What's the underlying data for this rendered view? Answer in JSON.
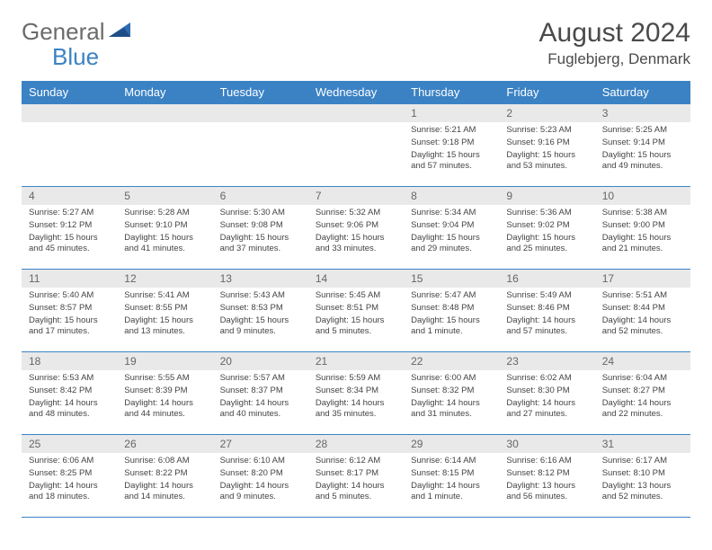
{
  "logo": {
    "text1": "General",
    "text2": "Blue"
  },
  "title": {
    "month": "August 2024",
    "location": "Fuglebjerg, Denmark"
  },
  "colors": {
    "header_bg": "#3b82c4",
    "header_text": "#ffffff",
    "daynum_bg": "#e9e9e9",
    "border": "#3b82c4"
  },
  "weekdays": [
    "Sunday",
    "Monday",
    "Tuesday",
    "Wednesday",
    "Thursday",
    "Friday",
    "Saturday"
  ],
  "weeks": [
    [
      null,
      null,
      null,
      null,
      {
        "n": "1",
        "sr": "Sunrise: 5:21 AM",
        "ss": "Sunset: 9:18 PM",
        "dl": "Daylight: 15 hours and 57 minutes."
      },
      {
        "n": "2",
        "sr": "Sunrise: 5:23 AM",
        "ss": "Sunset: 9:16 PM",
        "dl": "Daylight: 15 hours and 53 minutes."
      },
      {
        "n": "3",
        "sr": "Sunrise: 5:25 AM",
        "ss": "Sunset: 9:14 PM",
        "dl": "Daylight: 15 hours and 49 minutes."
      }
    ],
    [
      {
        "n": "4",
        "sr": "Sunrise: 5:27 AM",
        "ss": "Sunset: 9:12 PM",
        "dl": "Daylight: 15 hours and 45 minutes."
      },
      {
        "n": "5",
        "sr": "Sunrise: 5:28 AM",
        "ss": "Sunset: 9:10 PM",
        "dl": "Daylight: 15 hours and 41 minutes."
      },
      {
        "n": "6",
        "sr": "Sunrise: 5:30 AM",
        "ss": "Sunset: 9:08 PM",
        "dl": "Daylight: 15 hours and 37 minutes."
      },
      {
        "n": "7",
        "sr": "Sunrise: 5:32 AM",
        "ss": "Sunset: 9:06 PM",
        "dl": "Daylight: 15 hours and 33 minutes."
      },
      {
        "n": "8",
        "sr": "Sunrise: 5:34 AM",
        "ss": "Sunset: 9:04 PM",
        "dl": "Daylight: 15 hours and 29 minutes."
      },
      {
        "n": "9",
        "sr": "Sunrise: 5:36 AM",
        "ss": "Sunset: 9:02 PM",
        "dl": "Daylight: 15 hours and 25 minutes."
      },
      {
        "n": "10",
        "sr": "Sunrise: 5:38 AM",
        "ss": "Sunset: 9:00 PM",
        "dl": "Daylight: 15 hours and 21 minutes."
      }
    ],
    [
      {
        "n": "11",
        "sr": "Sunrise: 5:40 AM",
        "ss": "Sunset: 8:57 PM",
        "dl": "Daylight: 15 hours and 17 minutes."
      },
      {
        "n": "12",
        "sr": "Sunrise: 5:41 AM",
        "ss": "Sunset: 8:55 PM",
        "dl": "Daylight: 15 hours and 13 minutes."
      },
      {
        "n": "13",
        "sr": "Sunrise: 5:43 AM",
        "ss": "Sunset: 8:53 PM",
        "dl": "Daylight: 15 hours and 9 minutes."
      },
      {
        "n": "14",
        "sr": "Sunrise: 5:45 AM",
        "ss": "Sunset: 8:51 PM",
        "dl": "Daylight: 15 hours and 5 minutes."
      },
      {
        "n": "15",
        "sr": "Sunrise: 5:47 AM",
        "ss": "Sunset: 8:48 PM",
        "dl": "Daylight: 15 hours and 1 minute."
      },
      {
        "n": "16",
        "sr": "Sunrise: 5:49 AM",
        "ss": "Sunset: 8:46 PM",
        "dl": "Daylight: 14 hours and 57 minutes."
      },
      {
        "n": "17",
        "sr": "Sunrise: 5:51 AM",
        "ss": "Sunset: 8:44 PM",
        "dl": "Daylight: 14 hours and 52 minutes."
      }
    ],
    [
      {
        "n": "18",
        "sr": "Sunrise: 5:53 AM",
        "ss": "Sunset: 8:42 PM",
        "dl": "Daylight: 14 hours and 48 minutes."
      },
      {
        "n": "19",
        "sr": "Sunrise: 5:55 AM",
        "ss": "Sunset: 8:39 PM",
        "dl": "Daylight: 14 hours and 44 minutes."
      },
      {
        "n": "20",
        "sr": "Sunrise: 5:57 AM",
        "ss": "Sunset: 8:37 PM",
        "dl": "Daylight: 14 hours and 40 minutes."
      },
      {
        "n": "21",
        "sr": "Sunrise: 5:59 AM",
        "ss": "Sunset: 8:34 PM",
        "dl": "Daylight: 14 hours and 35 minutes."
      },
      {
        "n": "22",
        "sr": "Sunrise: 6:00 AM",
        "ss": "Sunset: 8:32 PM",
        "dl": "Daylight: 14 hours and 31 minutes."
      },
      {
        "n": "23",
        "sr": "Sunrise: 6:02 AM",
        "ss": "Sunset: 8:30 PM",
        "dl": "Daylight: 14 hours and 27 minutes."
      },
      {
        "n": "24",
        "sr": "Sunrise: 6:04 AM",
        "ss": "Sunset: 8:27 PM",
        "dl": "Daylight: 14 hours and 22 minutes."
      }
    ],
    [
      {
        "n": "25",
        "sr": "Sunrise: 6:06 AM",
        "ss": "Sunset: 8:25 PM",
        "dl": "Daylight: 14 hours and 18 minutes."
      },
      {
        "n": "26",
        "sr": "Sunrise: 6:08 AM",
        "ss": "Sunset: 8:22 PM",
        "dl": "Daylight: 14 hours and 14 minutes."
      },
      {
        "n": "27",
        "sr": "Sunrise: 6:10 AM",
        "ss": "Sunset: 8:20 PM",
        "dl": "Daylight: 14 hours and 9 minutes."
      },
      {
        "n": "28",
        "sr": "Sunrise: 6:12 AM",
        "ss": "Sunset: 8:17 PM",
        "dl": "Daylight: 14 hours and 5 minutes."
      },
      {
        "n": "29",
        "sr": "Sunrise: 6:14 AM",
        "ss": "Sunset: 8:15 PM",
        "dl": "Daylight: 14 hours and 1 minute."
      },
      {
        "n": "30",
        "sr": "Sunrise: 6:16 AM",
        "ss": "Sunset: 8:12 PM",
        "dl": "Daylight: 13 hours and 56 minutes."
      },
      {
        "n": "31",
        "sr": "Sunrise: 6:17 AM",
        "ss": "Sunset: 8:10 PM",
        "dl": "Daylight: 13 hours and 52 minutes."
      }
    ]
  ]
}
